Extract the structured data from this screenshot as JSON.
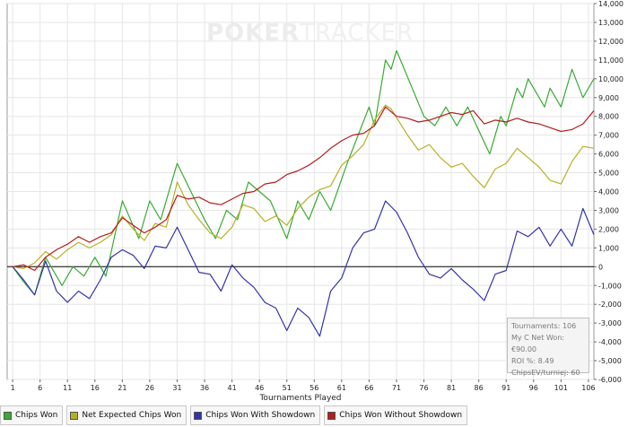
{
  "watermark": {
    "part1": "POKER",
    "part2": "TRACKER"
  },
  "chart_data": {
    "type": "line",
    "xlabel": "Tournaments Played",
    "x_ticks": [
      1,
      6,
      11,
      16,
      21,
      26,
      31,
      36,
      41,
      46,
      51,
      56,
      61,
      66,
      71,
      76,
      81,
      86,
      91,
      96,
      101,
      106
    ],
    "ylim": [
      -6000,
      14000
    ],
    "y_ticks": [
      14000,
      13000,
      12000,
      11000,
      10000,
      9000,
      8000,
      7000,
      6000,
      5000,
      4000,
      3000,
      2000,
      1000,
      0,
      -1000,
      -2000,
      -3000,
      -4000,
      -5000,
      -6000
    ],
    "y_tick_labels": [
      "14,000",
      "13,000",
      "12,000",
      "11,000",
      "10,000",
      "9,000",
      "8,000",
      "7,000",
      "6,000",
      "5,000",
      "4,000",
      "3,000",
      "2,000",
      "1,000",
      "0",
      "-1,000",
      "-2,000",
      "-3,000",
      "-4,000",
      "-5,000",
      "-6,000"
    ],
    "grid": true,
    "y_axis_side": "right",
    "legend_position": "bottom",
    "series": [
      {
        "name": "Chips Won",
        "color": "#3aaa35",
        "points": [
          [
            1,
            0
          ],
          [
            3,
            -800
          ],
          [
            5,
            -1500
          ],
          [
            7,
            500
          ],
          [
            10,
            -1000
          ],
          [
            12,
            0
          ],
          [
            14,
            -500
          ],
          [
            16,
            500
          ],
          [
            18,
            -500
          ],
          [
            21,
            3500
          ],
          [
            24,
            1500
          ],
          [
            26,
            3500
          ],
          [
            28,
            2500
          ],
          [
            31,
            5500
          ],
          [
            36,
            2500
          ],
          [
            38,
            1500
          ],
          [
            40,
            3000
          ],
          [
            42,
            2500
          ],
          [
            44,
            4500
          ],
          [
            48,
            3500
          ],
          [
            51,
            1500
          ],
          [
            53,
            3500
          ],
          [
            55,
            2500
          ],
          [
            57,
            4000
          ],
          [
            59,
            3000
          ],
          [
            62,
            5500
          ],
          [
            66,
            8500
          ],
          [
            67,
            7500
          ],
          [
            69,
            11000
          ],
          [
            70,
            10500
          ],
          [
            71,
            11500
          ],
          [
            76,
            8000
          ],
          [
            78,
            7500
          ],
          [
            80,
            8500
          ],
          [
            82,
            7500
          ],
          [
            84,
            8500
          ],
          [
            88,
            6000
          ],
          [
            90,
            8000
          ],
          [
            91,
            7500
          ],
          [
            93,
            9500
          ],
          [
            94,
            9000
          ],
          [
            95,
            10000
          ],
          [
            98,
            8500
          ],
          [
            99,
            9500
          ],
          [
            101,
            8500
          ],
          [
            103,
            10500
          ],
          [
            105,
            9000
          ],
          [
            107,
            10000
          ]
        ]
      },
      {
        "name": "Net Expected Chips Won",
        "color": "#b6b024",
        "points": [
          [
            1,
            0
          ],
          [
            3,
            -100
          ],
          [
            5,
            200
          ],
          [
            7,
            800
          ],
          [
            9,
            400
          ],
          [
            11,
            900
          ],
          [
            13,
            1300
          ],
          [
            15,
            1000
          ],
          [
            17,
            1300
          ],
          [
            19,
            1700
          ],
          [
            21,
            2700
          ],
          [
            23,
            2000
          ],
          [
            25,
            1400
          ],
          [
            27,
            2300
          ],
          [
            29,
            2100
          ],
          [
            31,
            4500
          ],
          [
            33,
            3300
          ],
          [
            35,
            2500
          ],
          [
            37,
            1800
          ],
          [
            39,
            1500
          ],
          [
            41,
            2100
          ],
          [
            43,
            3300
          ],
          [
            45,
            3100
          ],
          [
            47,
            2400
          ],
          [
            49,
            2700
          ],
          [
            51,
            2200
          ],
          [
            53,
            3100
          ],
          [
            55,
            3700
          ],
          [
            57,
            4100
          ],
          [
            59,
            4300
          ],
          [
            61,
            5400
          ],
          [
            63,
            5900
          ],
          [
            65,
            6500
          ],
          [
            67,
            7800
          ],
          [
            69,
            8600
          ],
          [
            70,
            8400
          ],
          [
            73,
            7000
          ],
          [
            75,
            6200
          ],
          [
            77,
            6500
          ],
          [
            79,
            5800
          ],
          [
            81,
            5300
          ],
          [
            83,
            5500
          ],
          [
            85,
            4800
          ],
          [
            87,
            4200
          ],
          [
            89,
            5200
          ],
          [
            91,
            5500
          ],
          [
            93,
            6300
          ],
          [
            95,
            5800
          ],
          [
            97,
            5300
          ],
          [
            99,
            4600
          ],
          [
            101,
            4400
          ],
          [
            103,
            5600
          ],
          [
            105,
            6400
          ],
          [
            107,
            6300
          ]
        ]
      },
      {
        "name": "Chips Won With Showdown",
        "color": "#3333aa",
        "points": [
          [
            1,
            0
          ],
          [
            3,
            -700
          ],
          [
            5,
            -1500
          ],
          [
            7,
            300
          ],
          [
            9,
            -1300
          ],
          [
            11,
            -1900
          ],
          [
            13,
            -1300
          ],
          [
            15,
            -1700
          ],
          [
            17,
            -700
          ],
          [
            19,
            500
          ],
          [
            21,
            900
          ],
          [
            23,
            600
          ],
          [
            25,
            -100
          ],
          [
            27,
            1100
          ],
          [
            29,
            1000
          ],
          [
            31,
            2100
          ],
          [
            33,
            900
          ],
          [
            35,
            -300
          ],
          [
            37,
            -400
          ],
          [
            39,
            -1300
          ],
          [
            41,
            100
          ],
          [
            43,
            -600
          ],
          [
            45,
            -1100
          ],
          [
            47,
            -1900
          ],
          [
            49,
            -2200
          ],
          [
            51,
            -3400
          ],
          [
            53,
            -2200
          ],
          [
            55,
            -2700
          ],
          [
            57,
            -3700
          ],
          [
            59,
            -1300
          ],
          [
            61,
            -600
          ],
          [
            63,
            1000
          ],
          [
            65,
            1800
          ],
          [
            67,
            2000
          ],
          [
            69,
            3500
          ],
          [
            71,
            2900
          ],
          [
            73,
            1800
          ],
          [
            75,
            500
          ],
          [
            77,
            -400
          ],
          [
            79,
            -600
          ],
          [
            81,
            -100
          ],
          [
            83,
            -700
          ],
          [
            85,
            -1200
          ],
          [
            87,
            -1800
          ],
          [
            89,
            -400
          ],
          [
            91,
            -200
          ],
          [
            93,
            1900
          ],
          [
            95,
            1600
          ],
          [
            97,
            2100
          ],
          [
            99,
            1100
          ],
          [
            101,
            2000
          ],
          [
            103,
            1100
          ],
          [
            105,
            3100
          ],
          [
            107,
            1700
          ]
        ]
      },
      {
        "name": "Chips Won Without Showdown",
        "color": "#b71c1c",
        "points": [
          [
            1,
            0
          ],
          [
            3,
            100
          ],
          [
            5,
            -200
          ],
          [
            7,
            500
          ],
          [
            9,
            900
          ],
          [
            11,
            1200
          ],
          [
            13,
            1600
          ],
          [
            15,
            1300
          ],
          [
            17,
            1600
          ],
          [
            19,
            1800
          ],
          [
            21,
            2600
          ],
          [
            23,
            2200
          ],
          [
            25,
            1800
          ],
          [
            27,
            2100
          ],
          [
            29,
            2500
          ],
          [
            31,
            3800
          ],
          [
            33,
            3600
          ],
          [
            35,
            3700
          ],
          [
            37,
            3400
          ],
          [
            39,
            3300
          ],
          [
            41,
            3600
          ],
          [
            43,
            3900
          ],
          [
            45,
            4000
          ],
          [
            47,
            4400
          ],
          [
            49,
            4500
          ],
          [
            51,
            4900
          ],
          [
            53,
            5100
          ],
          [
            55,
            5400
          ],
          [
            57,
            5800
          ],
          [
            59,
            6300
          ],
          [
            61,
            6700
          ],
          [
            63,
            7000
          ],
          [
            65,
            7100
          ],
          [
            67,
            7500
          ],
          [
            69,
            8500
          ],
          [
            71,
            8000
          ],
          [
            73,
            7900
          ],
          [
            75,
            7700
          ],
          [
            77,
            7800
          ],
          [
            79,
            8000
          ],
          [
            81,
            8200
          ],
          [
            83,
            8100
          ],
          [
            85,
            8300
          ],
          [
            87,
            7600
          ],
          [
            89,
            7800
          ],
          [
            91,
            7700
          ],
          [
            93,
            7900
          ],
          [
            95,
            7700
          ],
          [
            97,
            7600
          ],
          [
            99,
            7400
          ],
          [
            101,
            7200
          ],
          [
            103,
            7300
          ],
          [
            105,
            7600
          ],
          [
            107,
            8300
          ]
        ]
      }
    ]
  },
  "legend": {
    "items": [
      {
        "label": "Chips Won",
        "color": "#3aaa35"
      },
      {
        "label": "Net Expected Chips Won",
        "color": "#b6b024"
      },
      {
        "label": "Chips Won With Showdown",
        "color": "#3333aa"
      },
      {
        "label": "Chips Won Without Showdown",
        "color": "#b71c1c"
      }
    ]
  },
  "info": {
    "tournaments": "Tournaments: 106",
    "net_won": "My C Net Won: €90.00",
    "roi": "ROI %: 8.49",
    "chipsev": "ChipsEV/turniej: 60"
  }
}
